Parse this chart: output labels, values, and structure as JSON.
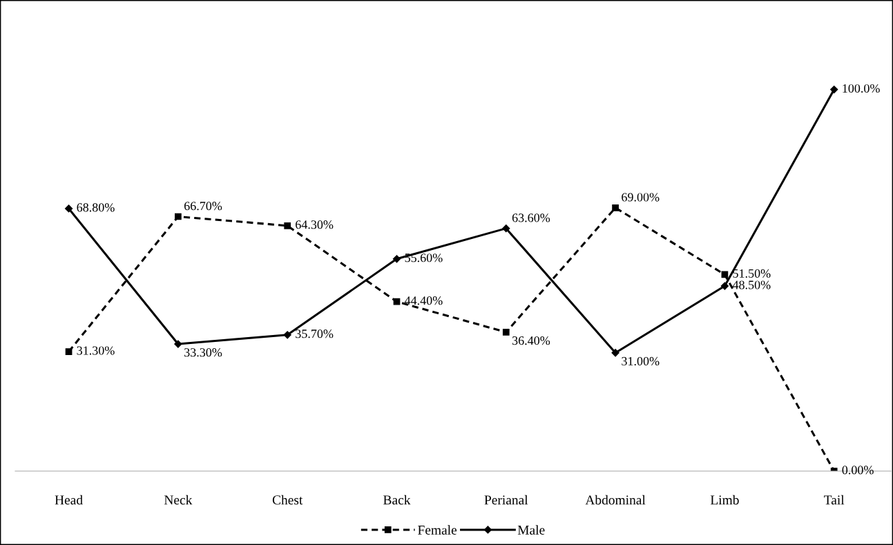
{
  "chart_data": {
    "type": "line",
    "categories": [
      "Head",
      "Neck",
      "Chest",
      "Back",
      "Perianal",
      "Abdominal",
      "Limb",
      "Tail"
    ],
    "series": [
      {
        "name": "Female",
        "color": "#000000",
        "marker": "square",
        "line_style": "dashed",
        "values": [
          31.3,
          66.7,
          64.3,
          44.4,
          36.4,
          69.0,
          51.5,
          0.0
        ],
        "value_labels": [
          "31.30%",
          "66.70%",
          "64.30%",
          "44.40%",
          "36.40%",
          "69.00%",
          "51.50%",
          "0.00%"
        ]
      },
      {
        "name": "Male",
        "color": "#000000",
        "marker": "diamond",
        "line_style": "solid",
        "values": [
          68.8,
          33.3,
          35.7,
          55.6,
          63.6,
          31.0,
          48.5,
          100.0
        ],
        "value_labels": [
          "68.80%",
          "33.30%",
          "35.70%",
          "55.60%",
          "63.60%",
          "31.00%",
          "48.50%",
          "100.0%"
        ]
      }
    ],
    "legend": "bottom",
    "grid": false
  }
}
